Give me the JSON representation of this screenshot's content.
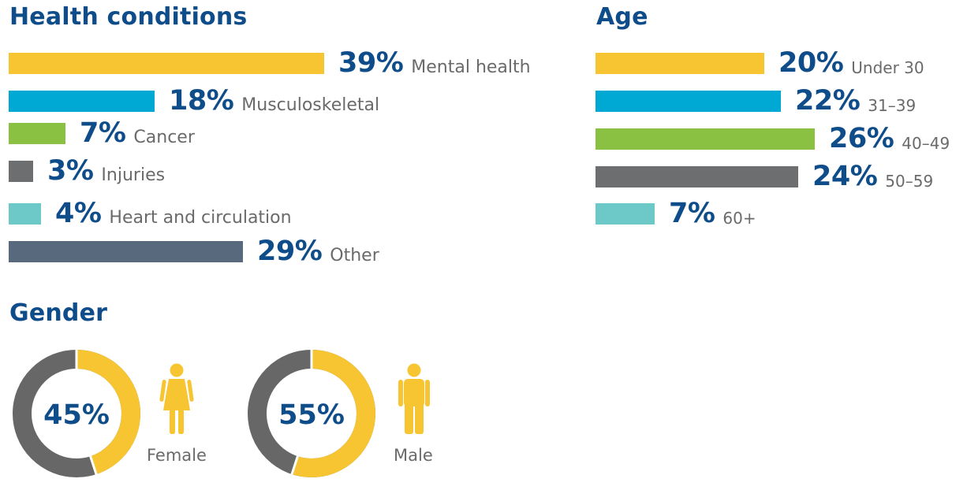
{
  "colors": {
    "title": "#0f4c8a",
    "label": "#6a6a6a",
    "yellow": "#f8c532",
    "blue": "#00a9d3",
    "green": "#8bc143",
    "gray": "#6d6e70",
    "teal": "#6cc9c8",
    "slate": "#58697e",
    "donut_dark": "#676767"
  },
  "chart_data": [
    {
      "type": "bar",
      "orientation": "horizontal",
      "title": "Health conditions",
      "categories": [
        "Mental health",
        "Musculoskeletal",
        "Cancer",
        "Injuries",
        "Heart and circulation",
        "Other"
      ],
      "values": [
        39,
        18,
        7,
        3,
        4,
        29
      ],
      "value_labels": [
        "39%",
        "18%",
        "7%",
        "3%",
        "4%",
        "29%"
      ],
      "bar_colors": [
        "#f8c532",
        "#00a9d3",
        "#8bc143",
        "#6d6e70",
        "#6cc9c8",
        "#58697e"
      ],
      "xlim": [
        0,
        39
      ]
    },
    {
      "type": "bar",
      "orientation": "horizontal",
      "title": "Age",
      "categories": [
        "Under 30",
        "31–39",
        "40–49",
        "50–59",
        "60+"
      ],
      "values": [
        20,
        22,
        26,
        24,
        7
      ],
      "value_labels": [
        "20%",
        "22%",
        "26%",
        "24%",
        "7%"
      ],
      "bar_colors": [
        "#f8c532",
        "#00a9d3",
        "#8bc143",
        "#6d6e70",
        "#6cc9c8"
      ],
      "xlim": [
        0,
        26
      ]
    },
    {
      "type": "pie",
      "variant": "donut",
      "title": "Gender",
      "categories": [
        "Female",
        "Male"
      ],
      "values": [
        45,
        55
      ],
      "value_labels": [
        "45%",
        "55%"
      ],
      "icons": [
        "female-person-icon",
        "male-person-icon"
      ]
    }
  ]
}
